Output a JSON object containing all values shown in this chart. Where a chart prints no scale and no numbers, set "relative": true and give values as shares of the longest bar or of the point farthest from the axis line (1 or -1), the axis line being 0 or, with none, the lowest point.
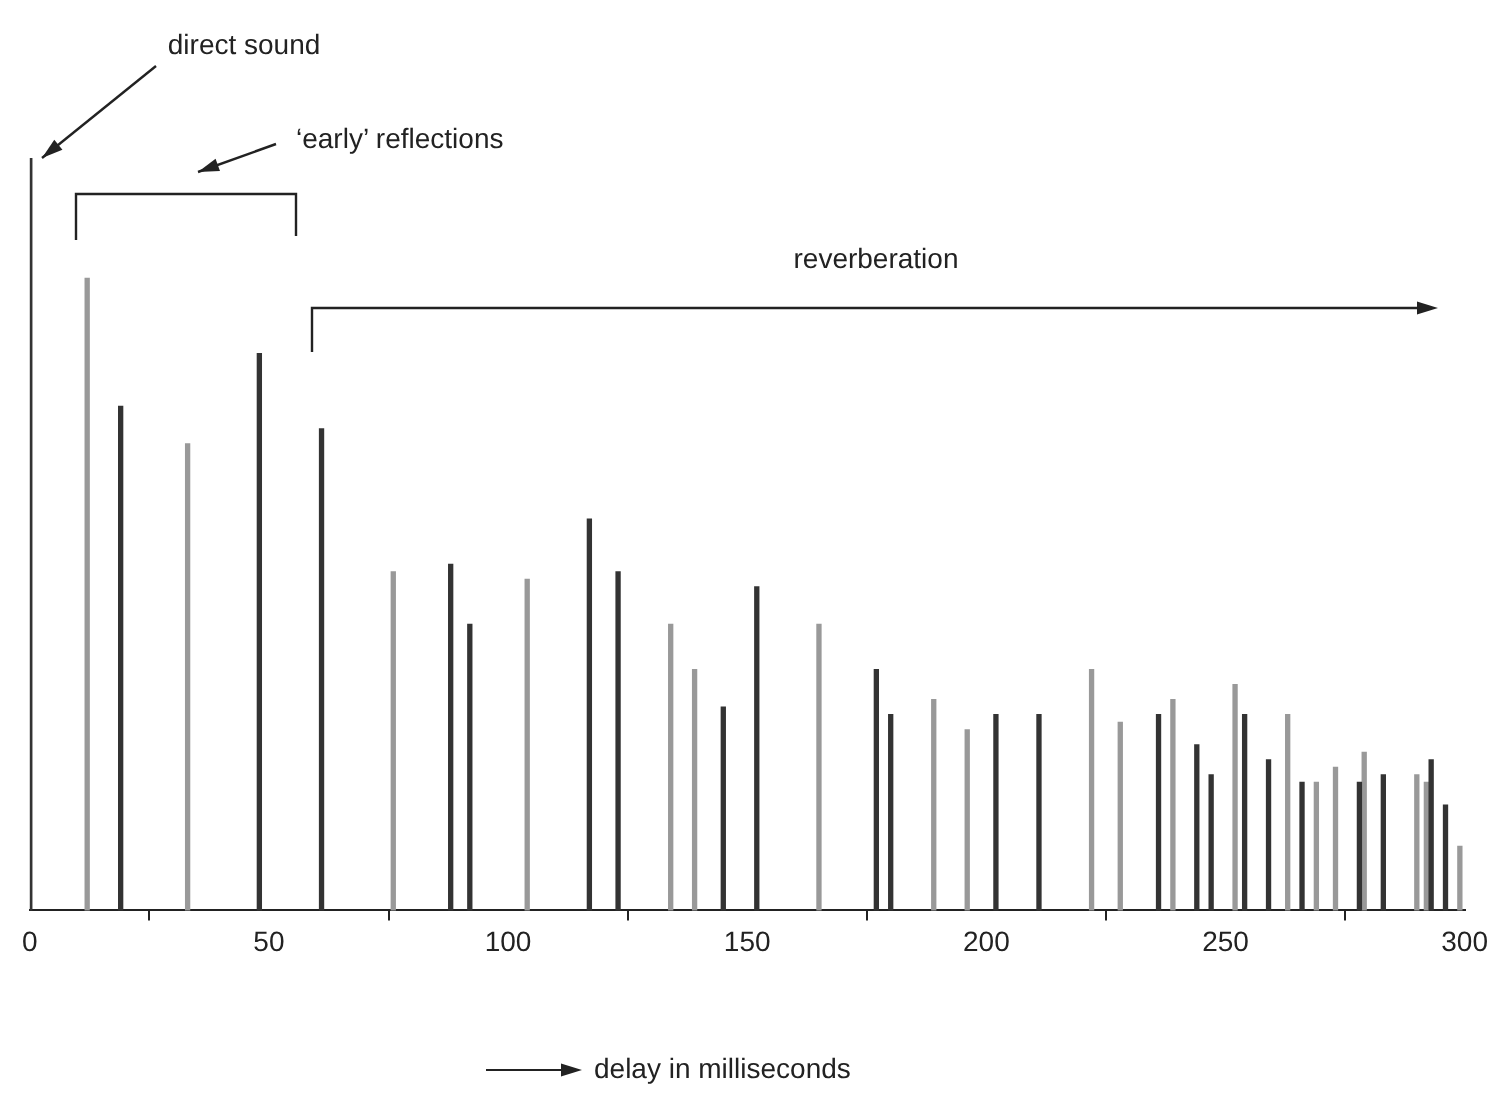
{
  "chart_data": {
    "type": "bar",
    "relative": true,
    "xlabel": "delay in milliseconds",
    "xlim": [
      0,
      300
    ],
    "xticks": [
      0,
      50,
      100,
      150,
      200,
      250,
      300
    ],
    "annotations": [
      {
        "text": "direct sound",
        "x": 0,
        "y": 1
      },
      "‘early’ reflections",
      "reverberation"
    ],
    "series": [
      {
        "color": "#333333",
        "x": [
          0,
          19,
          48,
          61,
          88,
          92,
          117,
          123,
          145,
          152,
          177,
          180,
          202,
          211,
          236,
          244,
          247,
          254,
          259,
          266,
          278,
          283,
          293,
          296
        ],
        "values": [
          1,
          0.67,
          0.74,
          0.64,
          0.46,
          0.38,
          0.52,
          0.45,
          0.27,
          0.43,
          0.32,
          0.26,
          0.26,
          0.26,
          0.26,
          0.22,
          0.18,
          0.26,
          0.2,
          0.17,
          0.17,
          0.18,
          0.2,
          0.14
        ]
      },
      {
        "color": "#999999",
        "x": [
          12,
          33,
          76,
          104,
          134,
          139,
          165,
          189,
          196,
          222,
          228,
          239,
          252,
          263,
          269,
          273,
          279,
          290,
          292,
          299
        ],
        "values": [
          0.84,
          0.62,
          0.45,
          0.44,
          0.38,
          0.32,
          0.38,
          0.28,
          0.24,
          0.32,
          0.25,
          0.28,
          0.3,
          0.26,
          0.17,
          0.19,
          0.21,
          0.18,
          0.17,
          0.085
        ]
      }
    ]
  }
}
